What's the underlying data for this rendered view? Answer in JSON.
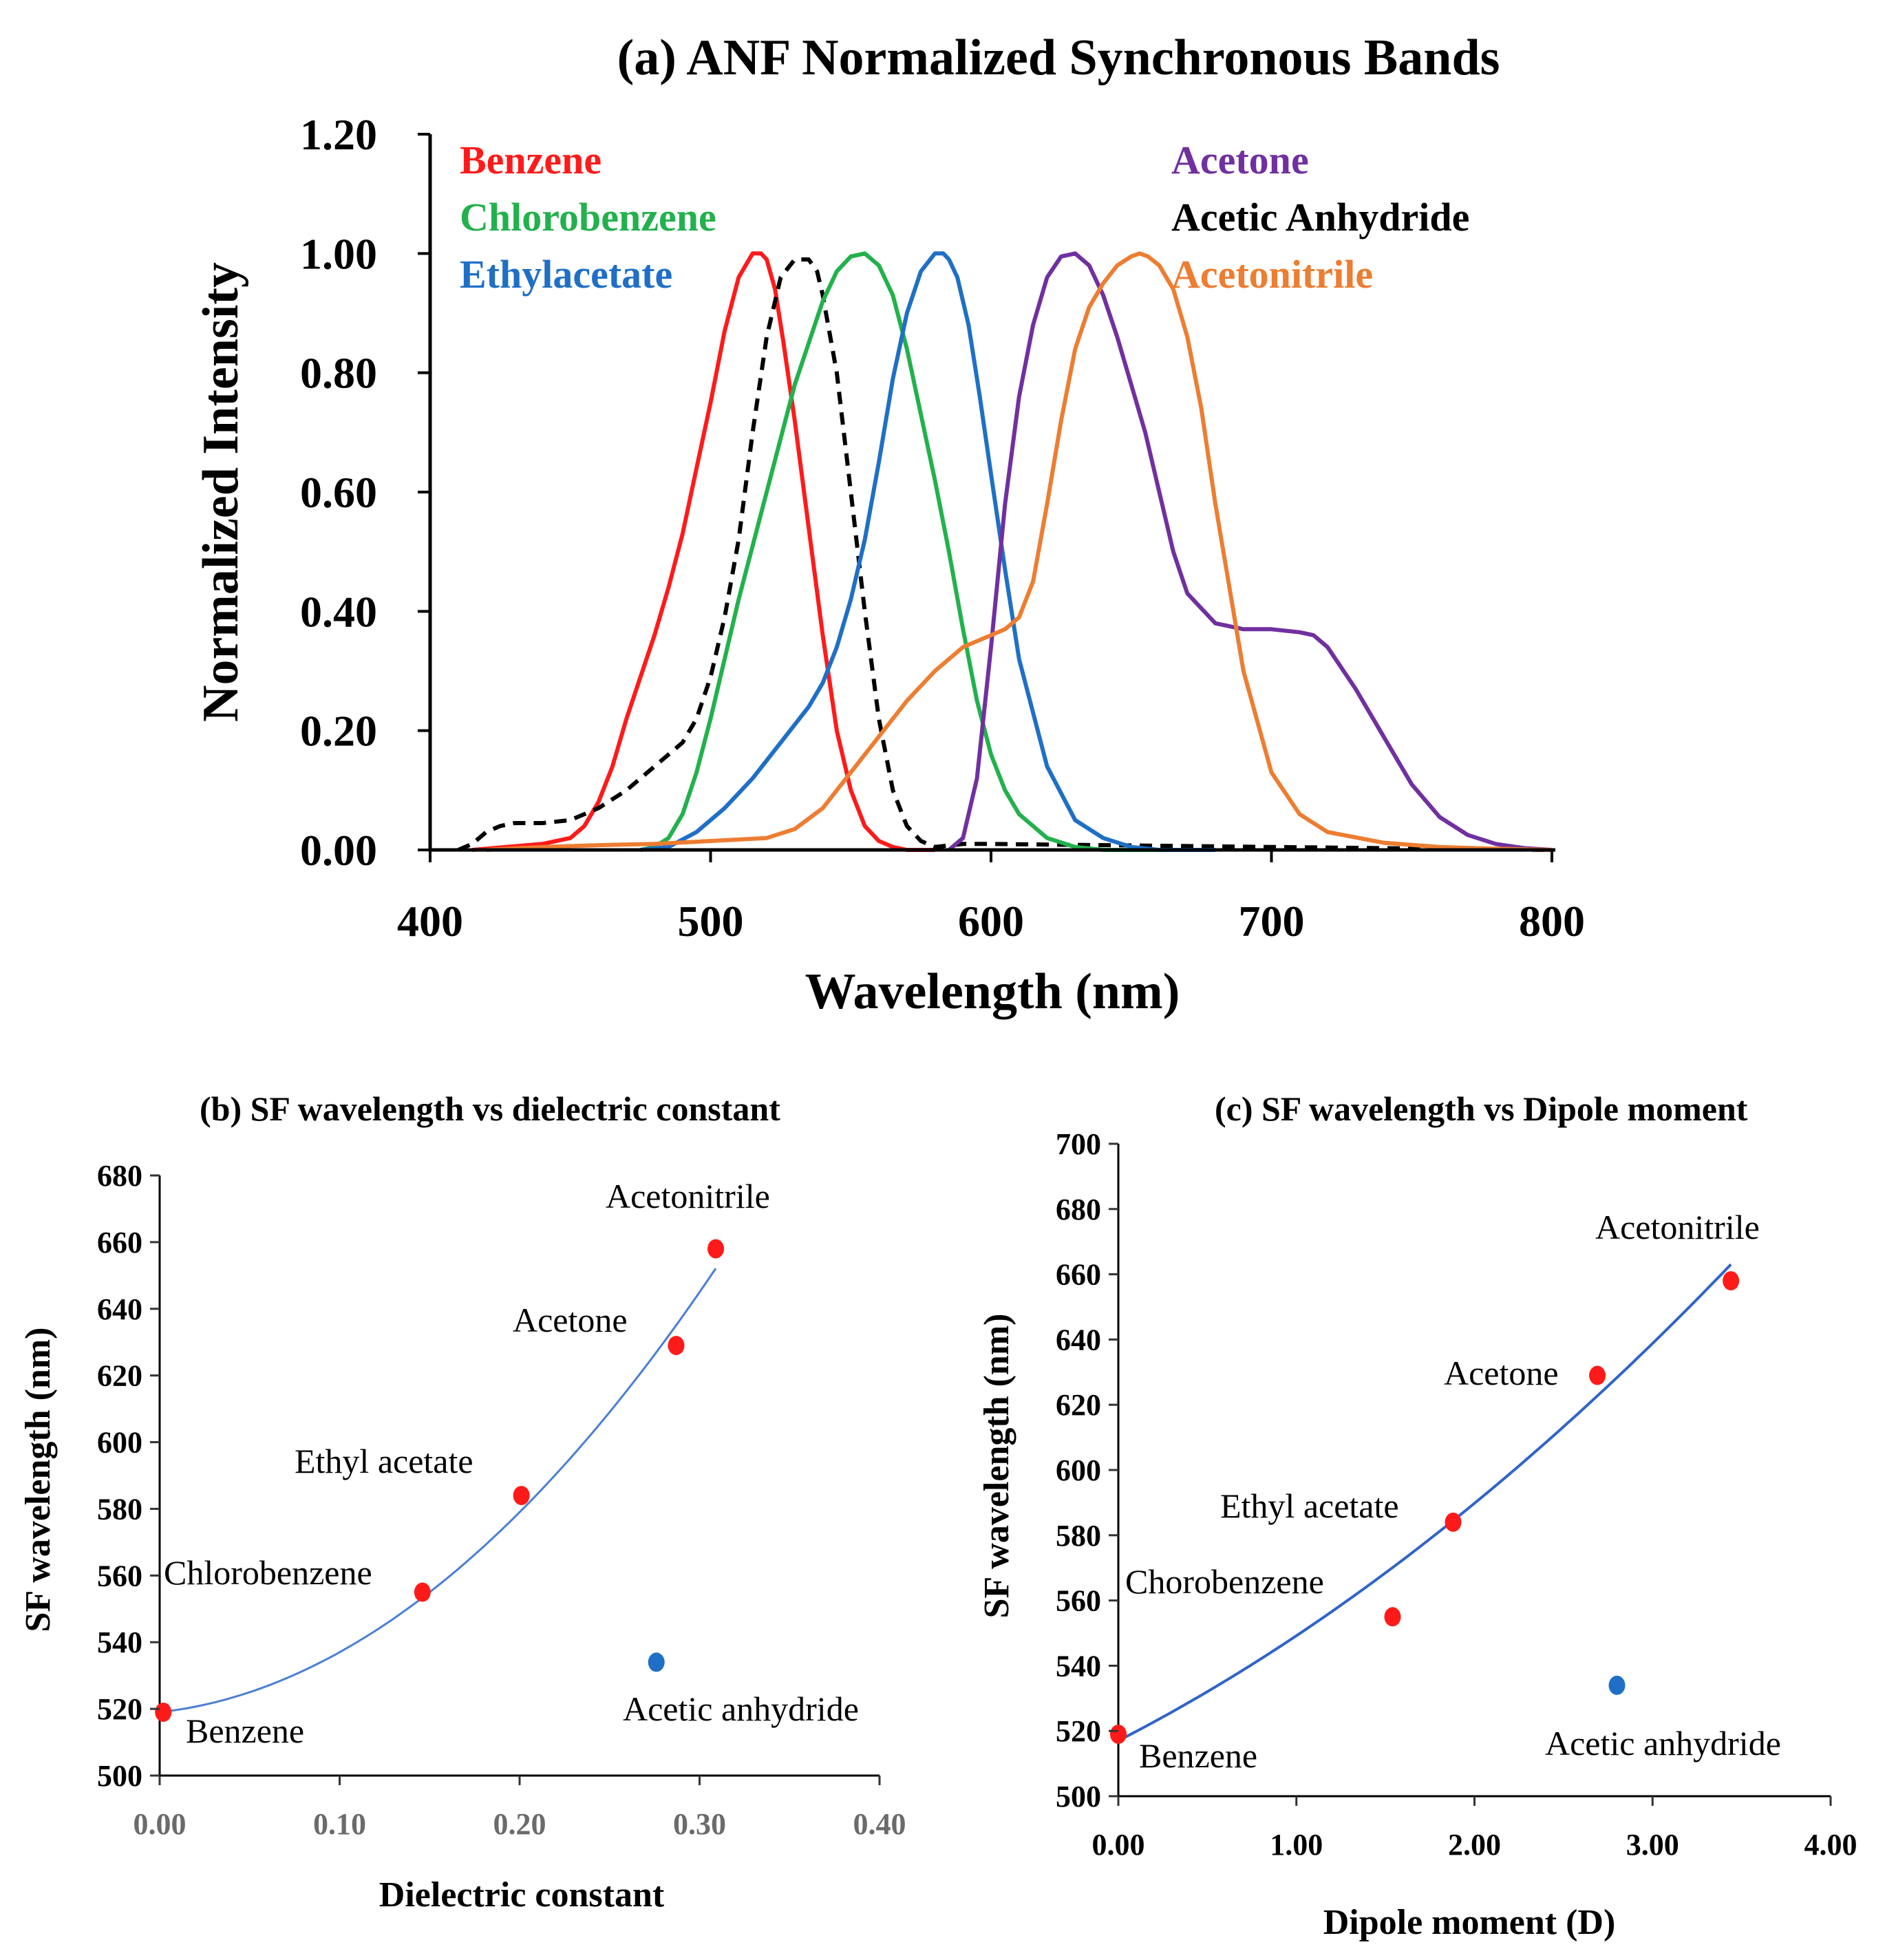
{
  "chart_data": [
    {
      "id": "a",
      "type": "line",
      "title": "(a)  ANF Normalized Synchronous Bands",
      "xlabel": "Wavelength (nm)",
      "ylabel": "Normalized Intensity",
      "xlim": [
        400,
        800
      ],
      "ylim": [
        0,
        1.2
      ],
      "xticks": [
        "400",
        "500",
        "600",
        "700",
        "800"
      ],
      "yticks": [
        "0.00",
        "0.20",
        "0.40",
        "0.60",
        "0.80",
        "1.00",
        "1.20"
      ],
      "series": [
        {
          "name": "Benzene",
          "color": "#ff1a1a",
          "dash": false,
          "x": [
            415,
            440,
            450,
            455,
            460,
            465,
            470,
            475,
            480,
            485,
            490,
            495,
            500,
            505,
            510,
            515,
            518,
            520,
            523,
            526,
            530,
            535,
            540,
            545,
            550,
            555,
            560,
            565,
            570,
            580
          ],
          "y": [
            0,
            0.01,
            0.02,
            0.04,
            0.08,
            0.14,
            0.22,
            0.29,
            0.36,
            0.44,
            0.53,
            0.64,
            0.75,
            0.87,
            0.96,
            1.0,
            1.0,
            0.99,
            0.94,
            0.85,
            0.72,
            0.54,
            0.36,
            0.2,
            0.1,
            0.04,
            0.015,
            0.005,
            0,
            0
          ]
        },
        {
          "name": "Acetic Anhydride",
          "color": "#000000",
          "dash": true,
          "x": [
            410,
            415,
            420,
            425,
            430,
            440,
            450,
            460,
            470,
            480,
            490,
            495,
            500,
            505,
            510,
            515,
            520,
            525,
            530,
            535,
            538,
            540,
            545,
            550,
            555,
            560,
            565,
            570,
            575,
            580,
            590,
            600,
            700,
            800
          ],
          "y": [
            0,
            0.01,
            0.03,
            0.04,
            0.045,
            0.045,
            0.05,
            0.07,
            0.1,
            0.14,
            0.18,
            0.22,
            0.29,
            0.39,
            0.52,
            0.7,
            0.86,
            0.96,
            0.99,
            0.99,
            0.97,
            0.93,
            0.8,
            0.6,
            0.4,
            0.22,
            0.1,
            0.04,
            0.015,
            0.005,
            0.01,
            0.01,
            0.005,
            0
          ]
        },
        {
          "name": "Chlorobenzene",
          "color": "#22b14c",
          "dash": false,
          "x": [
            475,
            480,
            485,
            490,
            495,
            500,
            505,
            510,
            520,
            530,
            540,
            545,
            550,
            555,
            560,
            565,
            570,
            580,
            585,
            590,
            595,
            600,
            605,
            610,
            620,
            630,
            640,
            660
          ],
          "y": [
            0,
            0.005,
            0.02,
            0.06,
            0.13,
            0.22,
            0.32,
            0.42,
            0.6,
            0.78,
            0.92,
            0.97,
            0.995,
            1.0,
            0.98,
            0.93,
            0.84,
            0.62,
            0.5,
            0.37,
            0.25,
            0.16,
            0.1,
            0.06,
            0.02,
            0.005,
            0.0,
            0
          ]
        },
        {
          "name": "Ethylacetate",
          "color": "#1f6fc6",
          "dash": false,
          "x": [
            475,
            485,
            495,
            505,
            515,
            525,
            535,
            540,
            545,
            550,
            555,
            560,
            565,
            570,
            575,
            580,
            583,
            585,
            588,
            592,
            596,
            600,
            605,
            610,
            620,
            630,
            640,
            650,
            660,
            680
          ],
          "y": [
            0,
            0.005,
            0.03,
            0.07,
            0.12,
            0.18,
            0.24,
            0.28,
            0.34,
            0.42,
            0.52,
            0.65,
            0.79,
            0.9,
            0.97,
            1.0,
            1.0,
            0.99,
            0.96,
            0.88,
            0.76,
            0.63,
            0.47,
            0.32,
            0.14,
            0.05,
            0.02,
            0.005,
            0,
            0
          ]
        },
        {
          "name": "Acetone",
          "color": "#7030a0",
          "dash": false,
          "x": [
            585,
            590,
            595,
            600,
            605,
            610,
            615,
            620,
            625,
            630,
            635,
            640,
            645,
            650,
            655,
            660,
            665,
            670,
            680,
            690,
            700,
            710,
            715,
            720,
            730,
            740,
            750,
            760,
            770,
            780,
            790,
            800
          ],
          "y": [
            0,
            0.02,
            0.12,
            0.34,
            0.58,
            0.76,
            0.88,
            0.96,
            0.995,
            1.0,
            0.98,
            0.93,
            0.86,
            0.78,
            0.7,
            0.6,
            0.5,
            0.43,
            0.38,
            0.37,
            0.37,
            0.365,
            0.36,
            0.34,
            0.27,
            0.19,
            0.11,
            0.055,
            0.025,
            0.01,
            0.003,
            0
          ]
        },
        {
          "name": "Acetonitrile",
          "color": "#ed7d31",
          "dash": false,
          "x": [
            420,
            440,
            460,
            480,
            500,
            520,
            530,
            540,
            550,
            560,
            570,
            580,
            590,
            600,
            605,
            610,
            615,
            620,
            625,
            630,
            635,
            640,
            645,
            650,
            653,
            656,
            660,
            665,
            670,
            675,
            680,
            690,
            700,
            710,
            720,
            740,
            760,
            780,
            800
          ],
          "y": [
            0,
            0.005,
            0.008,
            0.01,
            0.015,
            0.02,
            0.035,
            0.07,
            0.13,
            0.19,
            0.25,
            0.3,
            0.34,
            0.36,
            0.37,
            0.39,
            0.45,
            0.58,
            0.72,
            0.84,
            0.91,
            0.95,
            0.98,
            0.995,
            1.0,
            0.995,
            0.98,
            0.94,
            0.86,
            0.74,
            0.58,
            0.3,
            0.13,
            0.06,
            0.03,
            0.012,
            0.005,
            0.002,
            0
          ]
        }
      ]
    },
    {
      "id": "b",
      "type": "scatter",
      "title": "(b)     SF wavelength vs dielectric constant",
      "xlabel": "Dielectric constant",
      "ylabel": "SF wavelength (nm)",
      "xlim": [
        0,
        0.4
      ],
      "ylim": [
        500,
        680
      ],
      "xticks": [
        "0.00",
        "0.10",
        "0.20",
        "0.30",
        "0.40"
      ],
      "yticks": [
        "500",
        "520",
        "540",
        "560",
        "580",
        "600",
        "620",
        "640",
        "660",
        "680"
      ],
      "points": [
        {
          "label": "Benzene",
          "x": 0.002,
          "y": 519,
          "color": "#ff1a1a"
        },
        {
          "label": "Chlorobenzene",
          "x": 0.146,
          "y": 555,
          "color": "#ff1a1a"
        },
        {
          "label": "Ethyl acetate",
          "x": 0.201,
          "y": 584,
          "color": "#ff1a1a"
        },
        {
          "label": "Acetone",
          "x": 0.287,
          "y": 629,
          "color": "#ff1a1a"
        },
        {
          "label": "Acetonitrile",
          "x": 0.309,
          "y": 658,
          "color": "#ff1a1a"
        },
        {
          "label": "Acetic anhydride",
          "x": 0.276,
          "y": 534,
          "color": "#1f6fc6"
        }
      ],
      "trendline": {
        "type": "polynomial",
        "color": "#4a7fd4",
        "x_range": [
          0,
          0.309
        ],
        "coefficients": [
          519,
          60,
          1200
        ]
      }
    },
    {
      "id": "c",
      "type": "scatter",
      "title": "(c)    SF wavelength vs Dipole moment",
      "xlabel": "Dipole moment (D)",
      "ylabel": "SF wavelength (nm)",
      "xlim": [
        0,
        4
      ],
      "ylim": [
        500,
        700
      ],
      "xticks": [
        "0.00",
        "1.00",
        "2.00",
        "3.00",
        "4.00"
      ],
      "yticks": [
        "500",
        "520",
        "540",
        "560",
        "580",
        "600",
        "620",
        "640",
        "660",
        "680",
        "700"
      ],
      "points": [
        {
          "label": "Benzene",
          "x": 0.0,
          "y": 519,
          "color": "#ff1a1a"
        },
        {
          "label": "Chorobenzene",
          "x": 1.54,
          "y": 555,
          "color": "#ff1a1a"
        },
        {
          "label": "Ethyl acetate",
          "x": 1.88,
          "y": 584,
          "color": "#ff1a1a"
        },
        {
          "label": "Acetone",
          "x": 2.69,
          "y": 629,
          "color": "#ff1a1a"
        },
        {
          "label": "Acetonitrile",
          "x": 3.44,
          "y": 658,
          "color": "#ff1a1a"
        },
        {
          "label": "Acetic anhydride",
          "x": 2.8,
          "y": 534,
          "color": "#1f6fc6"
        }
      ],
      "trendline": {
        "type": "polynomial",
        "color": "#2f64c8",
        "x_range": [
          0,
          3.44
        ],
        "coefficients": [
          517,
          28,
          4.2
        ]
      }
    }
  ]
}
